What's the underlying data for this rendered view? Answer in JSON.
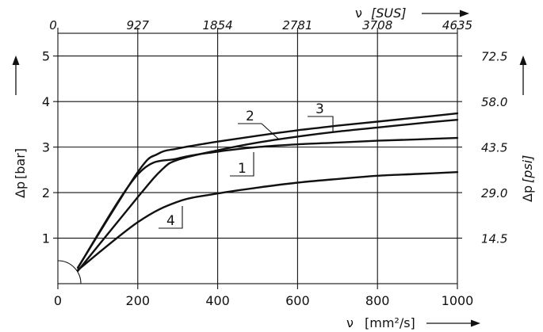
{
  "chart_data": {
    "type": "line",
    "x_bottom": {
      "label": "ν",
      "unit": "[mm²/s]",
      "ticks": [
        "0",
        "200",
        "400",
        "600",
        "800",
        "1000"
      ],
      "lim": [
        0,
        1000
      ]
    },
    "x_top": {
      "label": "ν",
      "unit": "[SUS]",
      "ticks": [
        "0",
        "927",
        "1854",
        "2781",
        "3708",
        "4635"
      ]
    },
    "y_left": {
      "label": "Δp",
      "unit": "[bar]",
      "ticks": [
        "1",
        "2",
        "3",
        "4",
        "5"
      ],
      "lim": [
        0,
        5.5
      ]
    },
    "y_right": {
      "label": "Δp",
      "unit": "[psi]",
      "ticks": [
        "14.5",
        "29.0",
        "43.5",
        "58.0",
        "72.5"
      ]
    },
    "grid": true,
    "series": [
      {
        "name": "1",
        "x": [
          50,
          200,
          300,
          400,
          500,
          600,
          700,
          800,
          900,
          1000
        ],
        "y": [
          0.35,
          2.4,
          2.75,
          2.9,
          3.0,
          3.06,
          3.1,
          3.14,
          3.17,
          3.2
        ]
      },
      {
        "name": "2",
        "x": [
          50,
          200,
          250,
          300,
          400,
          500,
          600,
          700,
          800,
          900,
          1000
        ],
        "y": [
          0.35,
          2.45,
          2.85,
          2.97,
          3.12,
          3.25,
          3.37,
          3.47,
          3.56,
          3.65,
          3.74
        ]
      },
      {
        "name": "3",
        "x": [
          50,
          200,
          260,
          300,
          400,
          500,
          600,
          700,
          800,
          900,
          1000
        ],
        "y": [
          0.28,
          1.9,
          2.5,
          2.72,
          2.93,
          3.1,
          3.23,
          3.34,
          3.43,
          3.52,
          3.6
        ]
      },
      {
        "name": "4",
        "x": [
          50,
          200,
          300,
          400,
          500,
          600,
          700,
          800,
          900,
          1000
        ],
        "y": [
          0.3,
          1.35,
          1.8,
          1.98,
          2.11,
          2.22,
          2.3,
          2.37,
          2.41,
          2.45
        ]
      }
    ],
    "curve_labels": [
      "1",
      "2",
      "3",
      "4"
    ]
  }
}
